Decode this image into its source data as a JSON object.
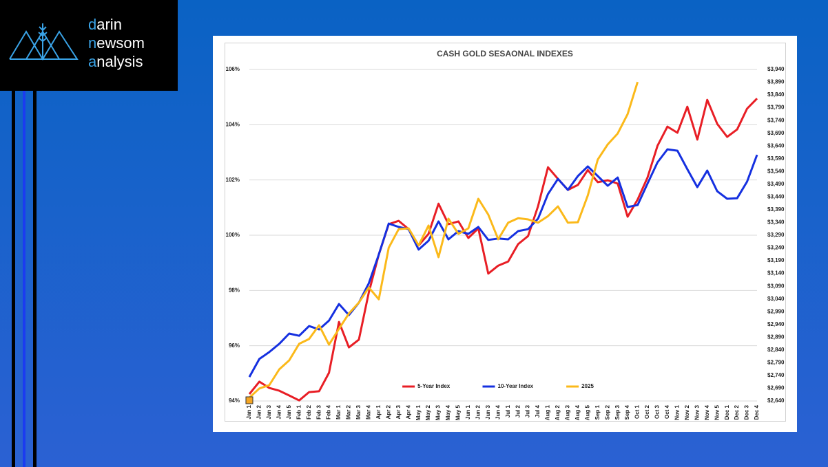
{
  "logo": {
    "lines": [
      "darin",
      "newsom",
      "analysis"
    ]
  },
  "chart_data": {
    "type": "line",
    "title": "CASH GOLD SESAONAL INDEXES",
    "categories": [
      "Jan 1",
      "Jan 2",
      "Jan 3",
      "Jan 4",
      "Jan 5",
      "Feb 1",
      "Feb 2",
      "Feb 3",
      "Feb 4",
      "Mar 1",
      "Mar 2",
      "Mar 3",
      "Mar 4",
      "Apr 1",
      "Apr 2",
      "Apr 3",
      "Apr 4",
      "May 1",
      "May 2",
      "May 3",
      "May 4",
      "May 5",
      "Jun 1",
      "Jun 2",
      "Jun 3",
      "Jun 4",
      "Jul 1",
      "Jul 2",
      "Jul 3",
      "Jul 4",
      "Aug 1",
      "Aug 2",
      "Aug 3",
      "Aug 4",
      "Aug 5",
      "Sep 1",
      "Sep 2",
      "Sep 3",
      "Sep 4",
      "Oct 1",
      "Oct 2",
      "Oct 3",
      "Oct 4",
      "Nov 1",
      "Nov 2",
      "Nov 3",
      "Nov 4",
      "Nov 5",
      "Dec 1",
      "Dec 2",
      "Dec 3",
      "Dec 4"
    ],
    "series": [
      {
        "name": "5-Year Index",
        "color": "#e81e25",
        "axis": "y",
        "values": [
          94.25,
          94.7,
          94.47,
          94.37,
          94.2,
          94.02,
          94.32,
          94.35,
          95.02,
          96.86,
          95.94,
          96.22,
          97.93,
          99.3,
          100.4,
          100.52,
          100.22,
          99.63,
          100.05,
          101.14,
          100.4,
          100.5,
          99.9,
          100.25,
          98.61,
          98.9,
          99.05,
          99.68,
          99.97,
          101.05,
          102.46,
          102.04,
          101.64,
          101.82,
          102.36,
          101.92,
          101.99,
          101.87,
          100.67,
          101.29,
          102.09,
          103.24,
          103.93,
          103.71,
          104.65,
          103.46,
          104.9,
          104.03,
          103.56,
          103.83,
          104.58,
          104.95
        ]
      },
      {
        "name": "10-Year Index",
        "color": "#1530e0",
        "axis": "y",
        "values": [
          94.87,
          95.52,
          95.77,
          96.07,
          96.44,
          96.36,
          96.71,
          96.59,
          96.91,
          97.51,
          97.11,
          97.56,
          98.26,
          99.3,
          100.42,
          100.3,
          100.22,
          99.48,
          99.8,
          100.5,
          99.85,
          100.15,
          100.05,
          100.3,
          99.83,
          99.88,
          99.85,
          100.15,
          100.22,
          100.6,
          101.49,
          102.04,
          101.64,
          102.14,
          102.49,
          102.14,
          101.79,
          102.09,
          101.02,
          101.09,
          101.87,
          102.64,
          103.11,
          103.06,
          102.39,
          101.74,
          102.34,
          101.59,
          101.32,
          101.34,
          101.94,
          102.91
        ]
      },
      {
        "name": "2025",
        "color": "#fbb91a",
        "axis": "y2",
        "values": [
          2653,
          2689,
          2702,
          2764,
          2799,
          2864,
          2883,
          2937,
          2861,
          2923,
          2983,
          3026,
          3085,
          3039,
          3241,
          3314,
          3317,
          3250,
          3328,
          3204,
          3355,
          3295,
          3317,
          3433,
          3371,
          3274,
          3339,
          3357,
          3352,
          3339,
          3365,
          3403,
          3339,
          3341,
          3446,
          3587,
          3646,
          3689,
          3765,
          3891,
          null,
          null,
          null,
          null,
          null,
          null,
          null,
          null,
          null,
          null,
          null,
          null
        ]
      }
    ],
    "ylim": [
      94,
      106
    ],
    "yticks": [
      {
        "value": 94,
        "label": "94%"
      },
      {
        "value": 96,
        "label": "96%"
      },
      {
        "value": 98,
        "label": "98%"
      },
      {
        "value": 100,
        "label": "100%"
      },
      {
        "value": 102,
        "label": "102%"
      },
      {
        "value": 104,
        "label": "104%"
      },
      {
        "value": 106,
        "label": "106%"
      }
    ],
    "y2lim": [
      2640,
      3940
    ],
    "y2ticks": [
      {
        "value": 2640,
        "label": "$2,640"
      },
      {
        "value": 2690,
        "label": "$2,690"
      },
      {
        "value": 2740,
        "label": "$2,740"
      },
      {
        "value": 2790,
        "label": "$2,790"
      },
      {
        "value": 2840,
        "label": "$2,840"
      },
      {
        "value": 2890,
        "label": "$2,890"
      },
      {
        "value": 2940,
        "label": "$2,940"
      },
      {
        "value": 2990,
        "label": "$2,990"
      },
      {
        "value": 3040,
        "label": "$3,040"
      },
      {
        "value": 3090,
        "label": "$3,090"
      },
      {
        "value": 3140,
        "label": "$3,140"
      },
      {
        "value": 3190,
        "label": "$3,190"
      },
      {
        "value": 3240,
        "label": "$3,240"
      },
      {
        "value": 3290,
        "label": "$3,290"
      },
      {
        "value": 3340,
        "label": "$3,340"
      },
      {
        "value": 3390,
        "label": "$3,390"
      },
      {
        "value": 3440,
        "label": "$3,440"
      },
      {
        "value": 3490,
        "label": "$3,490"
      },
      {
        "value": 3540,
        "label": "$3,540"
      },
      {
        "value": 3590,
        "label": "$3,590"
      },
      {
        "value": 3640,
        "label": "$3,640"
      },
      {
        "value": 3690,
        "label": "$3,690"
      },
      {
        "value": 3740,
        "label": "$3,740"
      },
      {
        "value": 3790,
        "label": "$3,790"
      },
      {
        "value": 3840,
        "label": "$3,840"
      },
      {
        "value": 3890,
        "label": "$3,890"
      },
      {
        "value": 3940,
        "label": "$3,940"
      }
    ],
    "grid": true,
    "legend": "lower center"
  }
}
